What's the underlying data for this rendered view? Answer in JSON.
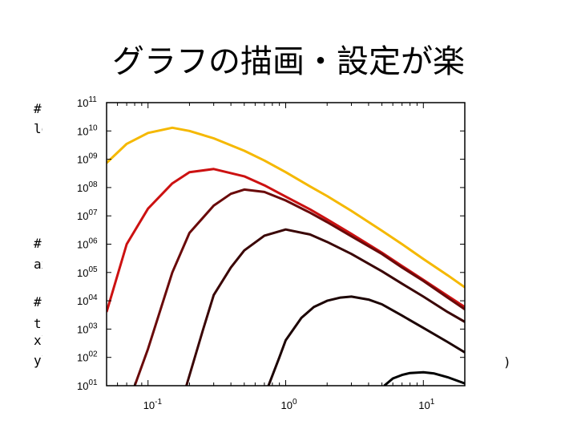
{
  "slide": {
    "title": "グラフの描画・設定が楽",
    "code_lines": [
      {
        "text": "#",
        "top": 128
      },
      {
        "text": "lo",
        "top": 153
      },
      {
        "text": "#",
        "top": 296
      },
      {
        "text": "ax",
        "top": 322
      },
      {
        "text": "#",
        "top": 369
      },
      {
        "text": "ti",
        "top": 396
      },
      {
        "text": "xl",
        "top": 417
      },
      {
        "text": "yl",
        "top": 442
      }
    ],
    "trailing_text": ")"
  },
  "chart_data": {
    "type": "line",
    "xscale": "log",
    "yscale": "log",
    "xlim": [
      0.05,
      20
    ],
    "ylim": [
      10,
      100000000000
    ],
    "x_ticks": [
      {
        "value": 0.1,
        "base": "10",
        "exp": "-1"
      },
      {
        "value": 1,
        "base": "10",
        "exp": "0"
      },
      {
        "value": 10,
        "base": "10",
        "exp": "1"
      }
    ],
    "y_ticks": [
      {
        "value": 10,
        "base": "10",
        "exp": "01"
      },
      {
        "value": 100,
        "base": "10",
        "exp": "02"
      },
      {
        "value": 1000,
        "base": "10",
        "exp": "03"
      },
      {
        "value": 10000,
        "base": "10",
        "exp": "04"
      },
      {
        "value": 100000,
        "base": "10",
        "exp": "05"
      },
      {
        "value": 1000000,
        "base": "10",
        "exp": "06"
      },
      {
        "value": 10000000,
        "base": "10",
        "exp": "07"
      },
      {
        "value": 100000000,
        "base": "10",
        "exp": "08"
      },
      {
        "value": 1000000000,
        "base": "10",
        "exp": "09"
      },
      {
        "value": 10000000000,
        "base": "10",
        "exp": "10"
      },
      {
        "value": 100000000000,
        "base": "10",
        "exp": "11"
      }
    ],
    "grid": false,
    "series": [
      {
        "color": "#f5b800",
        "points": [
          [
            0.05,
            740000000.0
          ],
          [
            0.07,
            3500000000.0
          ],
          [
            0.1,
            8500000000.0
          ],
          [
            0.15,
            13000000000.0
          ],
          [
            0.2,
            10000000000.0
          ],
          [
            0.3,
            5500000000.0
          ],
          [
            0.5,
            2000000000.0
          ],
          [
            0.7,
            900000000.0
          ],
          [
            1,
            350000000.0
          ],
          [
            1.5,
            110000000.0
          ],
          [
            2,
            50000000.0
          ],
          [
            3,
            15000000.0
          ],
          [
            5,
            3000000.0
          ],
          [
            7,
            1000000.0
          ],
          [
            10,
            300000.0
          ],
          [
            15,
            80000.0
          ],
          [
            20,
            30000.0
          ]
        ]
      },
      {
        "color": "#cc1111",
        "points": [
          [
            0.05,
            4000.0
          ],
          [
            0.07,
            1000000.0
          ],
          [
            0.1,
            18000000.0
          ],
          [
            0.15,
            140000000.0
          ],
          [
            0.2,
            350000000.0
          ],
          [
            0.3,
            450000000.0
          ],
          [
            0.5,
            250000000.0
          ],
          [
            0.7,
            120000000.0
          ],
          [
            1,
            48000000.0
          ],
          [
            1.5,
            17000000.0
          ],
          [
            2,
            7500000.0
          ],
          [
            3,
            2300000.0
          ],
          [
            5,
            500000.0
          ],
          [
            7,
            170000.0
          ],
          [
            10,
            55000.0
          ],
          [
            15,
            15000.0
          ],
          [
            20,
            6000.0
          ]
        ]
      },
      {
        "color": "#6a0a0a",
        "points": [
          [
            0.08,
            10
          ],
          [
            0.1,
            200.0
          ],
          [
            0.15,
            100000.0
          ],
          [
            0.2,
            2500000.0
          ],
          [
            0.3,
            23000000.0
          ],
          [
            0.4,
            60000000.0
          ],
          [
            0.5,
            85000000.0
          ],
          [
            0.7,
            70000000.0
          ],
          [
            1,
            35000000.0
          ],
          [
            1.5,
            13000000.0
          ],
          [
            2,
            6000000.0
          ],
          [
            3,
            1900000.0
          ],
          [
            5,
            450000.0
          ],
          [
            7,
            150000.0
          ],
          [
            10,
            50000.0
          ],
          [
            15,
            13000.0
          ],
          [
            20,
            5000.0
          ]
        ]
      },
      {
        "color": "#3a0505",
        "points": [
          [
            0.19,
            10
          ],
          [
            0.25,
            900.0
          ],
          [
            0.3,
            16000.0
          ],
          [
            0.4,
            150000.0
          ],
          [
            0.5,
            600000.0
          ],
          [
            0.7,
            2000000.0
          ],
          [
            1,
            3300000.0
          ],
          [
            1.5,
            2200000.0
          ],
          [
            2,
            1200000.0
          ],
          [
            3,
            450000.0
          ],
          [
            5,
            110000.0
          ],
          [
            7,
            40000.0
          ],
          [
            10,
            14000.0
          ],
          [
            15,
            4000.0
          ],
          [
            20,
            1800.0
          ]
        ]
      },
      {
        "color": "#1c0303",
        "points": [
          [
            0.75,
            10
          ],
          [
            0.9,
            100.0
          ],
          [
            1,
            400.0
          ],
          [
            1.3,
            2500.0
          ],
          [
            1.6,
            6000.0
          ],
          [
            2,
            10000.0
          ],
          [
            2.5,
            13000.0
          ],
          [
            3,
            14000.0
          ],
          [
            4,
            11000.0
          ],
          [
            5,
            7500.0
          ],
          [
            7,
            3000.0
          ],
          [
            10,
            1100.0
          ],
          [
            15,
            350.0
          ],
          [
            20,
            150.0
          ]
        ]
      },
      {
        "color": "#000000",
        "points": [
          [
            5.2,
            10
          ],
          [
            6,
            18
          ],
          [
            7,
            24
          ],
          [
            8,
            28
          ],
          [
            10,
            30
          ],
          [
            12,
            27
          ],
          [
            15,
            20
          ],
          [
            20,
            12
          ]
        ]
      }
    ]
  }
}
